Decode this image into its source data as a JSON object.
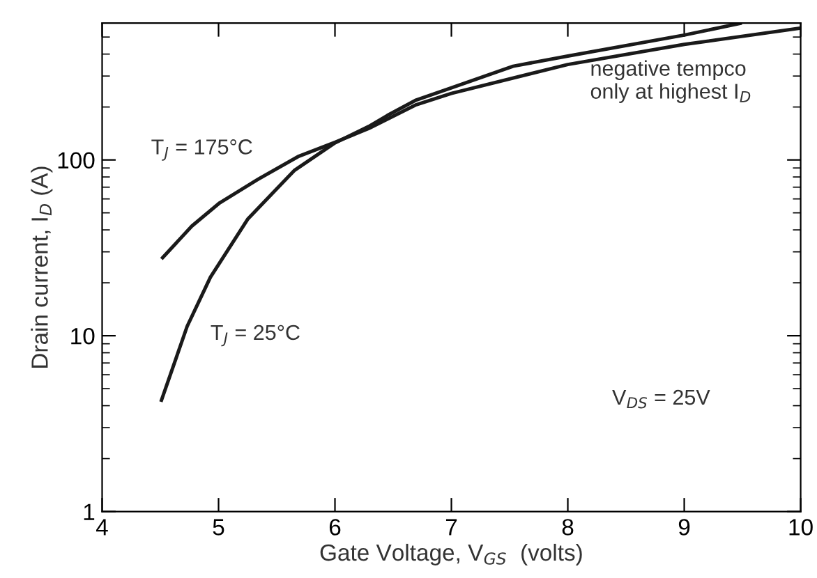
{
  "chart_data": {
    "type": "line",
    "xlabel": "Gate Voltage, V$_{GS}$  (volts)",
    "ylabel": "Drain current, I$_{D}$ (A)",
    "series": [
      {
        "name": "T$_{J}$ = 175°C",
        "color": "#1a1a1a",
        "x": [
          4.52,
          4.77,
          5.01,
          5.33,
          5.69,
          6.0,
          6.29,
          6.69,
          7.0,
          8.0,
          9.0,
          10.0
        ],
        "values": [
          27.8,
          42,
          57,
          77,
          105,
          126,
          151,
          205,
          239,
          349,
          454,
          562
        ]
      },
      {
        "name": "T$_{J}$ = 25°C",
        "color": "#1a1a1a",
        "x": [
          4.51,
          4.73,
          4.93,
          5.25,
          5.65,
          6.0,
          6.29,
          6.45,
          6.69,
          7.0,
          7.53,
          8.0,
          9.0,
          9.48
        ],
        "values": [
          4.3,
          11.3,
          21.5,
          46,
          87,
          125,
          155,
          179,
          218,
          257,
          341,
          390,
          513,
          598
        ]
      }
    ],
    "annotations": [
      "negative tempco\nonly at highest I$_{D}$",
      "V$_{DS}$ = 25V"
    ],
    "log": "y",
    "xlim": [
      4,
      10
    ],
    "ylim": [
      1,
      600
    ],
    "xticks": [
      4,
      5,
      6,
      7,
      8,
      9,
      10
    ],
    "yticks": [
      1,
      {
        "value": 2,
        "label": null
      },
      {
        "value": 3,
        "label": null
      },
      {
        "value": 4,
        "label": null
      },
      {
        "value": 5,
        "label": null
      },
      {
        "value": 6,
        "label": null
      },
      {
        "value": 7,
        "label": null
      },
      {
        "value": 8,
        "label": null
      },
      {
        "value": 9,
        "label": null
      },
      10,
      {
        "value": 20,
        "label": null
      },
      {
        "value": 30,
        "label": null
      },
      {
        "value": 40,
        "label": null
      },
      {
        "value": 50,
        "label": null
      },
      {
        "value": 60,
        "label": null
      },
      {
        "value": 70,
        "label": null
      },
      {
        "value": 80,
        "label": null
      },
      {
        "value": 90,
        "label": null
      },
      100,
      {
        "value": 200,
        "label": null
      },
      {
        "value": 300,
        "label": null
      },
      {
        "value": 400,
        "label": null
      },
      {
        "value": 500,
        "label": null
      }
    ],
    "grid": false,
    "legend": false,
    "marker": "none",
    "line_style": "solid"
  }
}
